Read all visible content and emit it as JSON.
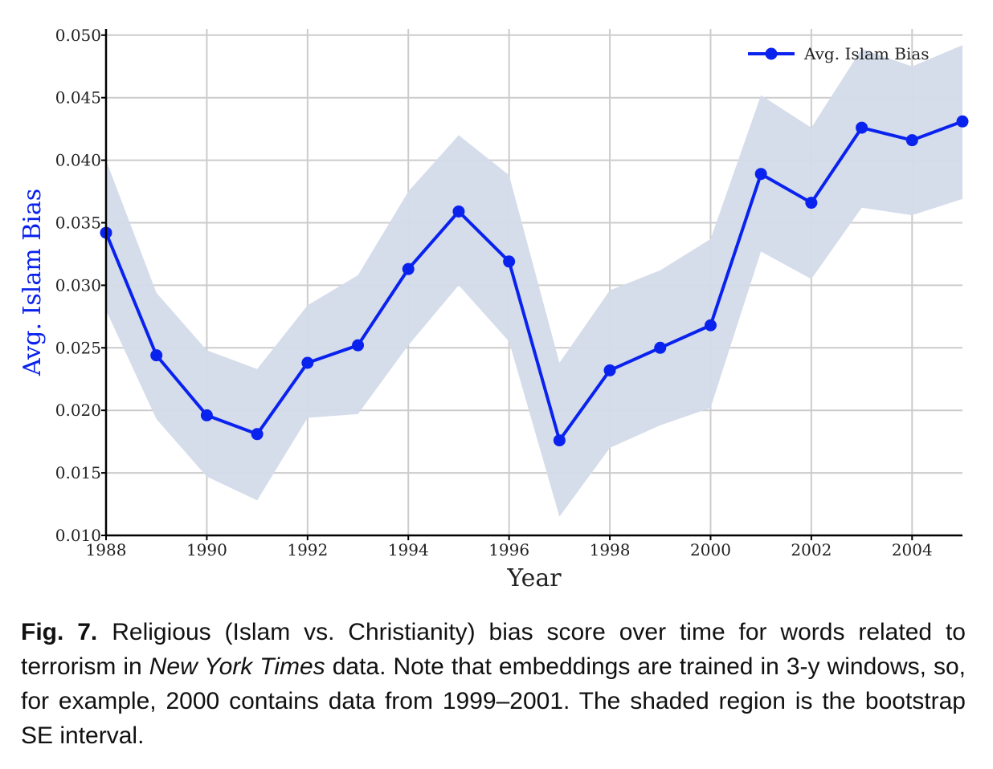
{
  "chart_data": {
    "type": "line",
    "title": "",
    "xlabel": "Year",
    "ylabel": "Avg. Islam Bias",
    "xlim": [
      1988,
      2005
    ],
    "ylim": [
      0.01,
      0.0505
    ],
    "x_ticks": [
      1988,
      1990,
      1992,
      1994,
      1996,
      1998,
      2000,
      2002,
      2004
    ],
    "y_ticks": [
      "0.010",
      "0.015",
      "0.020",
      "0.025",
      "0.030",
      "0.035",
      "0.040",
      "0.045",
      "0.050"
    ],
    "grid": true,
    "legend_position": "top-right",
    "series": [
      {
        "name": "Avg. Islam Bias",
        "color": "#0a22ee",
        "x": [
          1988,
          1989,
          1990,
          1991,
          1992,
          1993,
          1994,
          1995,
          1996,
          1997,
          1998,
          1999,
          2000,
          2001,
          2002,
          2003,
          2004,
          2005
        ],
        "y": [
          0.0342,
          0.0244,
          0.0196,
          0.0181,
          0.0238,
          0.0252,
          0.0313,
          0.0359,
          0.0319,
          0.0176,
          0.0232,
          0.025,
          0.0268,
          0.0389,
          0.0366,
          0.0426,
          0.0416,
          0.0431
        ],
        "lower": [
          0.028,
          0.0193,
          0.0147,
          0.0128,
          0.0194,
          0.0197,
          0.0252,
          0.03,
          0.0255,
          0.0115,
          0.017,
          0.0188,
          0.0202,
          0.0327,
          0.0305,
          0.0362,
          0.0356,
          0.0369
        ],
        "upper": [
          0.04,
          0.0294,
          0.0248,
          0.0233,
          0.0284,
          0.0308,
          0.0375,
          0.042,
          0.0388,
          0.0238,
          0.0296,
          0.0312,
          0.0337,
          0.0452,
          0.0426,
          0.0489,
          0.0475,
          0.0492
        ]
      }
    ],
    "band_color": "#d3dbea"
  },
  "caption": {
    "fig_label": "Fig. 7.",
    "text_before_italic": "Religious (Islam vs. Christianity) bias score over time for words related to terrorism in ",
    "italic_text": "New York Times",
    "text_after_italic": " data. Note that embeddings are trained in 3-y windows, so, for example, 2000 contains data from 1999–2001. The shaded region is the bootstrap SE interval."
  }
}
